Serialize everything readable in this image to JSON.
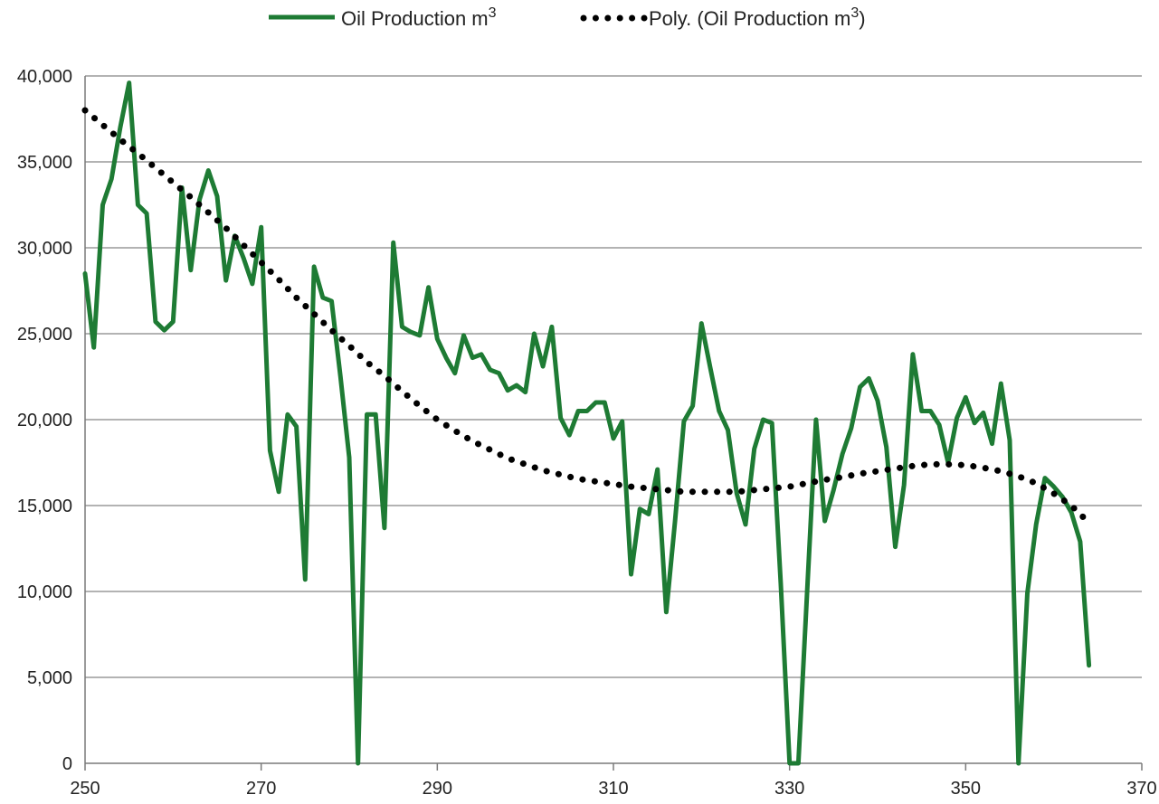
{
  "chart_data": {
    "type": "line",
    "title": "",
    "xlabel": "",
    "ylabel": "",
    "xlim": [
      250,
      370
    ],
    "ylim": [
      0,
      40000
    ],
    "xticks": [
      250,
      270,
      290,
      310,
      330,
      350,
      370
    ],
    "yticks": [
      0,
      5000,
      10000,
      15000,
      20000,
      25000,
      30000,
      35000,
      40000
    ],
    "xtick_labels": [
      "250",
      "270",
      "290",
      "310",
      "330",
      "350",
      "370"
    ],
    "ytick_labels": [
      "0",
      "5,000",
      "10,000",
      "15,000",
      "20,000",
      "25,000",
      "30,000",
      "35,000",
      "40,000"
    ],
    "grid": "horizontal",
    "legend_position": "top",
    "legend": {
      "series_label": "Oil Production m",
      "series_sup": "3",
      "trend_label": "Poly. (Oil Production m",
      "trend_sup": "3",
      "trend_close": ")"
    },
    "series": [
      {
        "name": "Oil Production m3",
        "color": "#1e7b34",
        "x": [
          250,
          251,
          252,
          253,
          254,
          255,
          256,
          257,
          258,
          259,
          260,
          261,
          262,
          263,
          264,
          265,
          266,
          267,
          268,
          269,
          270,
          271,
          272,
          273,
          274,
          275,
          276,
          277,
          278,
          279,
          280,
          281,
          282,
          283,
          284,
          285,
          286,
          287,
          288,
          289,
          290,
          291,
          292,
          293,
          294,
          295,
          296,
          297,
          298,
          299,
          300,
          301,
          302,
          303,
          304,
          305,
          306,
          307,
          308,
          309,
          310,
          311,
          312,
          313,
          314,
          315,
          316,
          317,
          318,
          319,
          320,
          321,
          322,
          323,
          324,
          325,
          326,
          327,
          328,
          329,
          330,
          331,
          332,
          333,
          334,
          335,
          336,
          337,
          338,
          339,
          340,
          341,
          342,
          343,
          344,
          345,
          346,
          347,
          348,
          349,
          350,
          351,
          352,
          353,
          354,
          355,
          356,
          357,
          358,
          359,
          360,
          361,
          362,
          363,
          364
        ],
        "values": [
          28500,
          24200,
          32500,
          34000,
          37000,
          39600,
          32500,
          32000,
          25700,
          25200,
          25700,
          33500,
          28700,
          32800,
          34500,
          33000,
          28100,
          30700,
          29400,
          27900,
          31200,
          18200,
          15800,
          20300,
          19600,
          10700,
          28900,
          27100,
          26900,
          22500,
          17800,
          0,
          20300,
          20300,
          13700,
          30300,
          25400,
          25100,
          24900,
          27700,
          24700,
          23600,
          22700,
          24900,
          23600,
          23800,
          22900,
          22700,
          21700,
          22000,
          21600,
          25000,
          23100,
          25400,
          20100,
          19100,
          20500,
          20500,
          21000,
          21000,
          18900,
          19900,
          11000,
          14800,
          14500,
          17100,
          8800,
          14100,
          19900,
          20800,
          25600,
          23000,
          20500,
          19400,
          15700,
          13900,
          18300,
          20000,
          19800,
          10500,
          0,
          0,
          10000,
          20000,
          14100,
          15900,
          18000,
          19500,
          21900,
          22400,
          21100,
          18400,
          12600,
          16200,
          23800,
          20500,
          20500,
          19700,
          17500,
          20100,
          21300,
          19800,
          20400,
          18600,
          22100,
          18800,
          0,
          9900,
          13900,
          16600,
          16100,
          15500,
          14600,
          12900,
          5700
        ]
      }
    ],
    "trendline": {
      "name": "Poly. (Oil Production m3)",
      "color": "#000000",
      "x": [
        250,
        252,
        254,
        256,
        258,
        260,
        262,
        264,
        266,
        268,
        270,
        272,
        274,
        276,
        278,
        280,
        282,
        284,
        286,
        288,
        290,
        292,
        294,
        296,
        298,
        300,
        302,
        304,
        306,
        308,
        310,
        312,
        314,
        316,
        318,
        320,
        322,
        324,
        326,
        328,
        330,
        332,
        334,
        336,
        338,
        340,
        342,
        344,
        346,
        348,
        350,
        352,
        354,
        356,
        358,
        360,
        362,
        364
      ],
      "values": [
        38000,
        37150,
        36300,
        35500,
        34650,
        33800,
        32950,
        32050,
        31150,
        30150,
        29150,
        28150,
        27100,
        26150,
        25200,
        24300,
        23350,
        22550,
        21650,
        20800,
        20000,
        19350,
        18750,
        18250,
        17750,
        17400,
        17050,
        16800,
        16550,
        16400,
        16250,
        16100,
        16000,
        15900,
        15800,
        15800,
        15800,
        15800,
        15900,
        16000,
        16100,
        16300,
        16500,
        16650,
        16850,
        17000,
        17150,
        17300,
        17400,
        17400,
        17350,
        17200,
        17000,
        16700,
        16300,
        15700,
        15000,
        14000
      ]
    }
  }
}
